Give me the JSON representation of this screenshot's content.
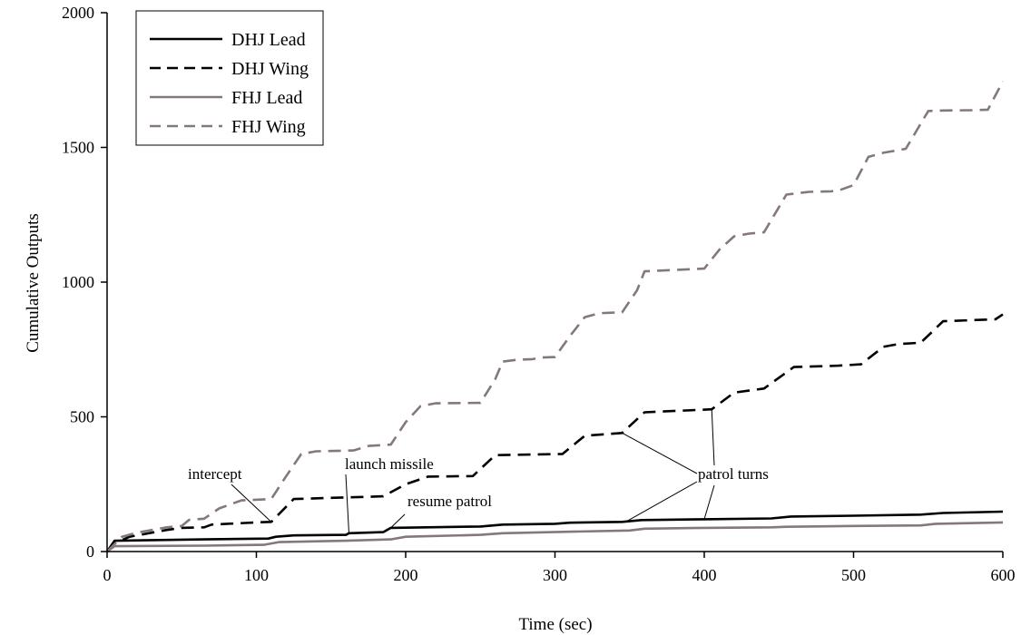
{
  "chart_data": {
    "type": "line",
    "title": "",
    "xlabel": "Time (sec)",
    "ylabel": "Cumulative Outputs",
    "xlim": [
      0,
      600
    ],
    "ylim": [
      0,
      2000
    ],
    "xticks": [
      0,
      100,
      200,
      300,
      400,
      500,
      600
    ],
    "yticks": [
      0,
      500,
      1000,
      1500,
      2000
    ],
    "grid": false,
    "legend_position": "top-left",
    "series": [
      {
        "name": "DHJ Lead",
        "color": "#000000",
        "dash": "solid",
        "points": [
          [
            0,
            0
          ],
          [
            5,
            40
          ],
          [
            65,
            45
          ],
          [
            108,
            48
          ],
          [
            113,
            55
          ],
          [
            125,
            60
          ],
          [
            160,
            62
          ],
          [
            162,
            68
          ],
          [
            185,
            72
          ],
          [
            190,
            88
          ],
          [
            250,
            93
          ],
          [
            265,
            100
          ],
          [
            300,
            103
          ],
          [
            310,
            107
          ],
          [
            345,
            110
          ],
          [
            358,
            117
          ],
          [
            400,
            120
          ],
          [
            445,
            123
          ],
          [
            458,
            130
          ],
          [
            500,
            133
          ],
          [
            545,
            137
          ],
          [
            560,
            143
          ],
          [
            600,
            148
          ]
        ]
      },
      {
        "name": "DHJ Wing",
        "color": "#000000",
        "dash": "dashed",
        "points": [
          [
            0,
            0
          ],
          [
            5,
            30
          ],
          [
            15,
            55
          ],
          [
            40,
            80
          ],
          [
            50,
            88
          ],
          [
            65,
            90
          ],
          [
            70,
            100
          ],
          [
            100,
            108
          ],
          [
            110,
            110
          ],
          [
            125,
            195
          ],
          [
            185,
            205
          ],
          [
            200,
            250
          ],
          [
            215,
            278
          ],
          [
            245,
            280
          ],
          [
            260,
            358
          ],
          [
            305,
            362
          ],
          [
            320,
            430
          ],
          [
            345,
            440
          ],
          [
            360,
            517
          ],
          [
            405,
            528
          ],
          [
            420,
            590
          ],
          [
            440,
            605
          ],
          [
            460,
            685
          ],
          [
            490,
            690
          ],
          [
            505,
            695
          ],
          [
            520,
            760
          ],
          [
            530,
            770
          ],
          [
            545,
            775
          ],
          [
            560,
            855
          ],
          [
            595,
            862
          ],
          [
            600,
            880
          ]
        ]
      },
      {
        "name": "FHJ Lead",
        "color": "#857878",
        "dash": "solid",
        "points": [
          [
            0,
            0
          ],
          [
            5,
            20
          ],
          [
            65,
            22
          ],
          [
            105,
            25
          ],
          [
            115,
            35
          ],
          [
            160,
            40
          ],
          [
            190,
            45
          ],
          [
            200,
            55
          ],
          [
            250,
            62
          ],
          [
            265,
            68
          ],
          [
            305,
            73
          ],
          [
            350,
            78
          ],
          [
            360,
            85
          ],
          [
            400,
            88
          ],
          [
            445,
            90
          ],
          [
            455,
            92
          ],
          [
            500,
            95
          ],
          [
            545,
            97
          ],
          [
            555,
            103
          ],
          [
            600,
            108
          ]
        ]
      },
      {
        "name": "FHJ Wing",
        "color": "#857878",
        "dash": "dashed",
        "points": [
          [
            0,
            0
          ],
          [
            10,
            55
          ],
          [
            20,
            70
          ],
          [
            40,
            90
          ],
          [
            50,
            95
          ],
          [
            55,
            118
          ],
          [
            65,
            122
          ],
          [
            75,
            160
          ],
          [
            90,
            190
          ],
          [
            110,
            195
          ],
          [
            120,
            280
          ],
          [
            130,
            362
          ],
          [
            140,
            372
          ],
          [
            165,
            375
          ],
          [
            175,
            392
          ],
          [
            190,
            397
          ],
          [
            200,
            480
          ],
          [
            210,
            540
          ],
          [
            220,
            550
          ],
          [
            250,
            552
          ],
          [
            260,
            640
          ],
          [
            265,
            705
          ],
          [
            275,
            712
          ],
          [
            285,
            714
          ],
          [
            290,
            720
          ],
          [
            300,
            722
          ],
          [
            310,
            800
          ],
          [
            320,
            870
          ],
          [
            330,
            885
          ],
          [
            345,
            888
          ],
          [
            355,
            970
          ],
          [
            360,
            1040
          ],
          [
            400,
            1050
          ],
          [
            410,
            1120
          ],
          [
            420,
            1170
          ],
          [
            430,
            1180
          ],
          [
            440,
            1185
          ],
          [
            455,
            1325
          ],
          [
            470,
            1335
          ],
          [
            485,
            1337
          ],
          [
            490,
            1340
          ],
          [
            500,
            1360
          ],
          [
            510,
            1465
          ],
          [
            520,
            1480
          ],
          [
            530,
            1490
          ],
          [
            535,
            1495
          ],
          [
            550,
            1635
          ],
          [
            560,
            1637
          ],
          [
            580,
            1638
          ],
          [
            590,
            1640
          ],
          [
            600,
            1745
          ]
        ]
      }
    ],
    "annotations": [
      {
        "text": "intercept",
        "targets": [
          [
            110,
            110
          ]
        ]
      },
      {
        "text": "launch missile",
        "targets": [
          [
            162,
            68
          ]
        ]
      },
      {
        "text": "resume patrol",
        "targets": [
          [
            190,
            88
          ]
        ]
      },
      {
        "text": "patrol turns",
        "targets": [
          [
            345,
            440
          ],
          [
            405,
            528
          ],
          [
            348,
            112
          ],
          [
            400,
            120
          ]
        ]
      }
    ]
  }
}
